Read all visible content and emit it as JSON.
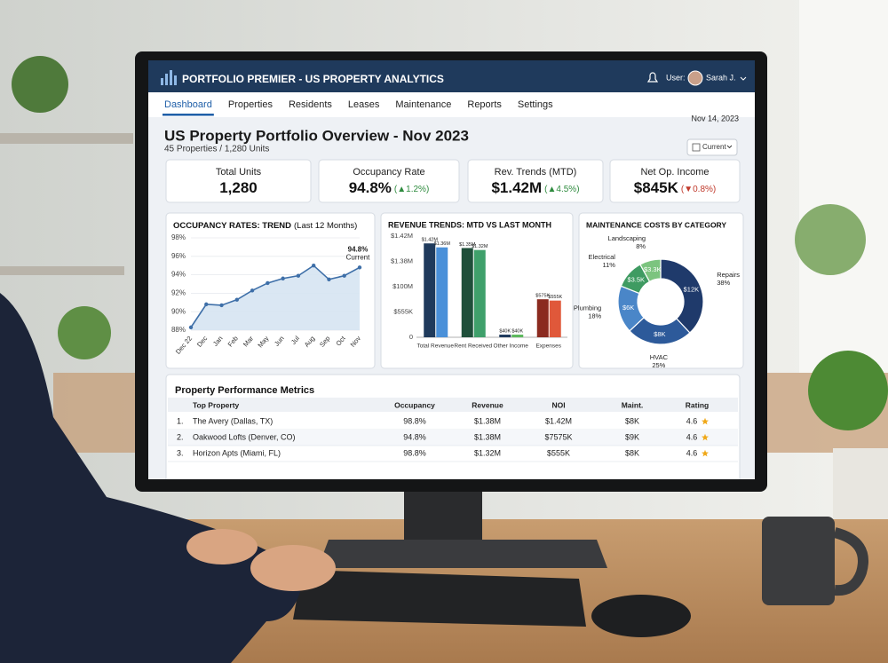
{
  "header": {
    "title": "PORTFOLIO PREMIER - US PROPERTY ANALYTICS",
    "user_label": "User:",
    "user_name": "Sarah J."
  },
  "nav": {
    "tabs": [
      "Dashboard",
      "Properties",
      "Residents",
      "Leases",
      "Maintenance",
      "Reports",
      "Settings"
    ],
    "active": 0,
    "date": "Nov 14, 2023"
  },
  "overview": {
    "title": "US Property Portfolio Overview - Nov 2023",
    "subtitle": "45 Properties / 1,280 Units",
    "filter": "Current"
  },
  "kpis": [
    {
      "label": "Total Units",
      "value": "1,280"
    },
    {
      "label": "Occupancy Rate",
      "value": "94.8%",
      "change": "(▲1.2%)",
      "change_color": "#2e8b3e"
    },
    {
      "label": "Rev. Trends (MTD)",
      "value": "$1.42M",
      "change": "(▲4.5%)",
      "change_color": "#2e8b3e"
    },
    {
      "label": "Net Op. Income",
      "value": "$845K",
      "change": "(▼0.8%)",
      "change_color": "#c0392b"
    }
  ],
  "chart_data": [
    {
      "type": "line",
      "title": "OCCUPANCY RATES: TREND",
      "subtitle": "(Last 12 Months)",
      "categories": [
        "Dec 22",
        "Dec",
        "Jan",
        "Feb",
        "Mar",
        "May",
        "Jun",
        "Jul",
        "Aug",
        "Sep",
        "Oct",
        "Nov"
      ],
      "values": [
        88.3,
        90.8,
        90.7,
        91.3,
        92.3,
        93.1,
        93.6,
        93.9,
        95.0,
        93.5,
        93.9,
        94.8
      ],
      "color": "#3e6fa8",
      "area_color": "#d6e4f2",
      "ylim": [
        88,
        98
      ],
      "yticks": [
        {
          "value": 88,
          "label": "88%"
        },
        {
          "value": 90,
          "label": "90%"
        },
        {
          "value": 92,
          "label": "92%"
        },
        {
          "value": 94,
          "label": "94%"
        },
        {
          "value": 96,
          "label": "96%"
        },
        {
          "value": 98,
          "label": "98%"
        }
      ],
      "grid": true,
      "annotation": {
        "label": "94.8%",
        "text": "Current"
      }
    },
    {
      "type": "bar",
      "title": "REVENUE TRENDS: MTD VS LAST MONTH",
      "categories": [
        "Total Revenue",
        "Rent Received",
        "Other Income",
        "Expenses"
      ],
      "series": [
        {
          "colors": [
            "#1f3a5c",
            "#1f4f3a",
            "#1f3a5c",
            "#8b2a1f"
          ],
          "values": [
            1420000,
            1350000,
            40000,
            575000
          ],
          "value_labels": [
            "$1.42M",
            "$1.35M",
            "$40K",
            "$575K"
          ]
        },
        {
          "colors": [
            "#4a90d9",
            "#3fa06b",
            "#5cb85c",
            "#e0583a"
          ],
          "values": [
            1360000,
            1320000,
            40000,
            555000
          ],
          "value_labels": [
            "$1.36M",
            "$1.32M",
            "$40K",
            "$555K"
          ]
        }
      ],
      "ylim": [
        0,
        1450000
      ],
      "ytick_labels": [
        "0",
        "$555K",
        "$100M",
        "$1.38M",
        "$1.42M"
      ]
    },
    {
      "type": "donut",
      "title": "MAINTENANCE COSTS BY CATEGORY",
      "categories": [
        "Repairs",
        "HVAC",
        "Plumbing",
        "Electrical",
        "Landscaping"
      ],
      "values": [
        38,
        25,
        18,
        11,
        8
      ],
      "value_labels": [
        "38%",
        "25%",
        "18%",
        "11%",
        "8%"
      ],
      "amounts": [
        12000,
        8000,
        6000,
        3500,
        3300
      ],
      "amount_labels": [
        "$12K",
        "$8K",
        "$6K",
        "$3.5K",
        "$3.3K"
      ],
      "colors": [
        "#1f3a6b",
        "#2d5a9a",
        "#4a86c8",
        "#3f9b62",
        "#7cc47f"
      ]
    }
  ],
  "table": {
    "title": "Property Performance Metrics",
    "columns": [
      "Top Property",
      "Occupancy",
      "Revenue",
      "NOI",
      "Maint.",
      "Rating"
    ],
    "rows": [
      [
        "1.",
        "The Avery (Dallas, TX)",
        "98.8%",
        "$1.38M",
        "$1.42M",
        "$8K",
        "4.6"
      ],
      [
        "2.",
        "Oakwood Lofts (Denver, CO)",
        "94.8%",
        "$1.38M",
        "$7575K",
        "$9K",
        "4.6"
      ],
      [
        "3.",
        "Horizon Apts (Miami, FL)",
        "98.8%",
        "$1.32M",
        "$555K",
        "$8K",
        "4.6"
      ]
    ]
  }
}
